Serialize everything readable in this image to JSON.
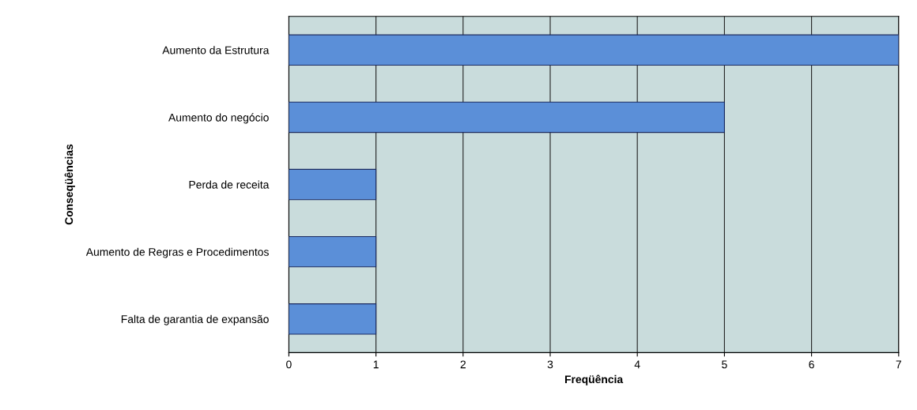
{
  "chart_data": {
    "type": "bar",
    "orientation": "horizontal",
    "xlabel": "Freqüência",
    "ylabel": "Conseqüências",
    "categories": [
      "Aumento da Estrutura",
      "Aumento do negócio",
      "Perda de receita",
      "Aumento de Regras e Procedimentos",
      "Falta de garantia de expansão"
    ],
    "values": [
      7,
      5,
      1,
      1,
      1
    ],
    "color": "#5b8fd8",
    "xlim": [
      0,
      7
    ],
    "xticks": [
      0,
      1,
      2,
      3,
      4,
      5,
      6,
      7
    ],
    "grid": "x",
    "legend": false
  }
}
